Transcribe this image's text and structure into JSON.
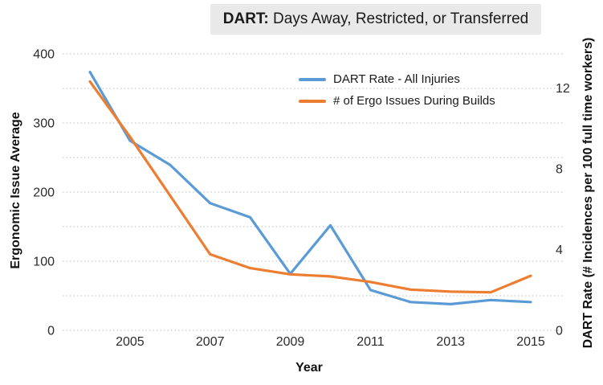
{
  "title": {
    "emphasis": "DART:",
    "rest": " Days Away, Restricted, or Transferred"
  },
  "legend": {
    "items": [
      {
        "label": "DART Rate - All Injuries",
        "color": "#5B9BD5"
      },
      {
        "label": "# of Ergo Issues During Builds",
        "color": "#ED7D31"
      }
    ]
  },
  "axes": {
    "x": {
      "title": "Year",
      "tick_labels": [
        2005,
        2007,
        2009,
        2011,
        2013,
        2015
      ]
    },
    "left": {
      "title": "Ergonomic Issue Average",
      "ticks": [
        0,
        100,
        200,
        300,
        400
      ]
    },
    "right": {
      "title": "DART Rate (# Incidences per 100 full time workers)",
      "ticks": [
        0,
        4,
        8,
        12
      ]
    }
  },
  "colors": {
    "dart_line": "#5B9BD5",
    "ergo_line": "#ED7D31",
    "gridline": "#c9c9c9",
    "tick_text": "#2b2b2b",
    "title_bg": "#e9e9e9"
  },
  "chart_data": {
    "type": "line",
    "title": "DART: Days Away, Restricted, or Transferred",
    "xlabel": "Year",
    "x": [
      2004,
      2005,
      2006,
      2007,
      2008,
      2009,
      2010,
      2011,
      2012,
      2013,
      2014,
      2015
    ],
    "series": [
      {
        "name": "DART Rate - All Injuries",
        "axis": "right",
        "color": "#5B9BD5",
        "values": [
          12.8,
          9.4,
          8.2,
          6.3,
          5.6,
          2.8,
          5.2,
          2.0,
          1.4,
          1.3,
          1.5,
          1.4
        ]
      },
      {
        "name": "# of Ergo Issues During Builds",
        "axis": "left",
        "color": "#ED7D31",
        "values": [
          360,
          280,
          195,
          110,
          90,
          81,
          78,
          70,
          59,
          56,
          55,
          79
        ]
      }
    ],
    "left_axis": {
      "label": "Ergonomic Issue Average",
      "ylim": [
        0,
        400
      ],
      "ticks": [
        0,
        100,
        200,
        300,
        400
      ]
    },
    "right_axis": {
      "label": "DART Rate (# Incidences per 100 full time workers)",
      "ylim": [
        0,
        13.7
      ],
      "ticks": [
        0,
        4,
        8,
        12
      ]
    },
    "x_tick_labels": [
      2005,
      2007,
      2009,
      2011,
      2013,
      2015
    ],
    "grid": "horizontal dotted lines every 50 left-axis units",
    "legend_position": "inside top-center"
  }
}
